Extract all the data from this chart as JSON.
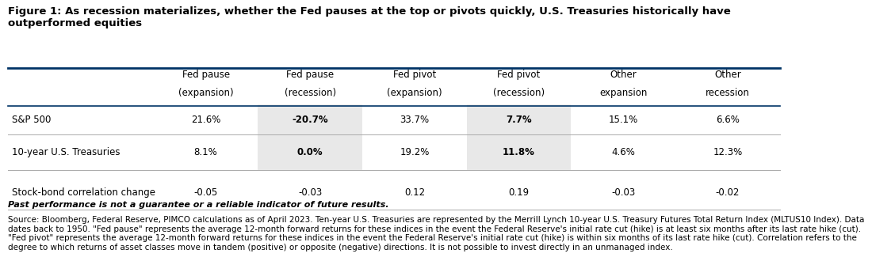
{
  "title": "Figure 1: As recession materializes, whether the Fed pauses at the top or pivots quickly, U.S. Treasuries historically have\noutperformed equities",
  "col_headers": [
    [
      "Fed pause",
      "(expansion)"
    ],
    [
      "Fed pause",
      "(recession)"
    ],
    [
      "Fed pivot",
      "(expansion)"
    ],
    [
      "Fed pivot",
      "(recession)"
    ],
    [
      "Other",
      "expansion"
    ],
    [
      "Other",
      "recession"
    ]
  ],
  "row_labels": [
    "S&P 500",
    "10-year U.S. Treasuries",
    "Stock-bond correlation change"
  ],
  "data": [
    [
      "21.6%",
      "-20.7%",
      "33.7%",
      "7.7%",
      "15.1%",
      "6.6%"
    ],
    [
      "8.1%",
      "0.0%",
      "19.2%",
      "11.8%",
      "4.6%",
      "12.3%"
    ],
    [
      "-0.05",
      "-0.03",
      "0.12",
      "0.19",
      "-0.03",
      "-0.02"
    ]
  ],
  "highlight_cols": [
    1,
    3
  ],
  "highlight_color": "#e8e8e8",
  "header_line_color": "#003366",
  "separator_color": "#aaaaaa",
  "bold_note": "Past performance is not a guarantee or a reliable indicator of future results.",
  "source_text": "Source: Bloomberg, Federal Reserve, PIMCO calculations as of April 2023. Ten-year U.S. Treasuries are represented by the Merrill Lynch 10-year U.S. Treasury Futures Total Return Index (MLTUS10 Index). Data dates back to 1950. \"Fed pause\" represents the average 12-month forward returns for these indices in the event the Federal Reserve's initial rate cut (hike) is at least six months after its last rate hike (cut). \"Fed pivot\" represents the average 12-month forward returns for these indices in the event the Federal Reserve's initial rate cut (hike) is within six months of its last rate hike (cut). Correlation refers to the degree to which returns of asset classes move in tandem (positive) or opposite (negative) directions. It is not possible to invest directly in an unmanaged index.",
  "background_color": "#ffffff",
  "font_color": "#000000",
  "title_fontsize": 9.5,
  "header_fontsize": 8.5,
  "cell_fontsize": 8.5,
  "note_fontsize": 8.0,
  "source_fontsize": 7.5
}
